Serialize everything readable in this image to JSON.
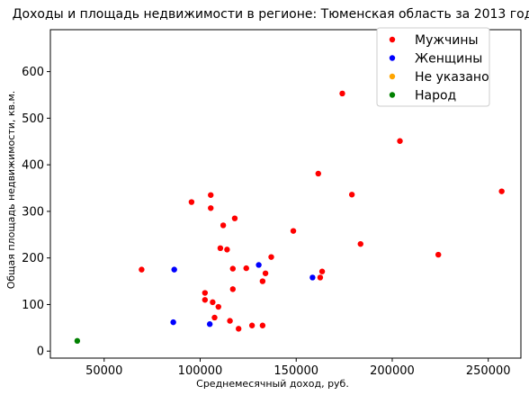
{
  "chart_data": {
    "type": "scatter",
    "title": "Доходы и площадь недвижимости в регионе: Тюменская область за 2013 год",
    "xlabel": "Среднемесячный доход, руб.",
    "ylabel": "Общая площадь недвижимости, кв.м.",
    "xlim": [
      22000,
      267000
    ],
    "ylim": [
      -15,
      690
    ],
    "xticks": [
      50000,
      100000,
      150000,
      200000,
      250000
    ],
    "yticks": [
      0,
      100,
      200,
      300,
      400,
      500,
      600
    ],
    "grid": false,
    "legend": "top-right",
    "series": [
      {
        "name": "Мужчины",
        "color": "#ff0000",
        "points": [
          [
            69500,
            175
          ],
          [
            95500,
            320
          ],
          [
            102500,
            125
          ],
          [
            102500,
            110
          ],
          [
            105500,
            335
          ],
          [
            105500,
            307
          ],
          [
            106500,
            105
          ],
          [
            107500,
            72
          ],
          [
            109500,
            95
          ],
          [
            110500,
            221
          ],
          [
            112000,
            270
          ],
          [
            114000,
            218
          ],
          [
            115500,
            65
          ],
          [
            117000,
            177
          ],
          [
            117000,
            133
          ],
          [
            118000,
            285
          ],
          [
            120000,
            48
          ],
          [
            124000,
            178
          ],
          [
            127000,
            55
          ],
          [
            132500,
            55
          ],
          [
            132500,
            150
          ],
          [
            134000,
            167
          ],
          [
            137000,
            202
          ],
          [
            148500,
            258
          ],
          [
            161500,
            381
          ],
          [
            162500,
            158
          ],
          [
            163500,
            171
          ],
          [
            174000,
            553
          ],
          [
            179000,
            336
          ],
          [
            183500,
            230
          ],
          [
            204000,
            451
          ],
          [
            224000,
            207
          ],
          [
            257000,
            343
          ]
        ]
      },
      {
        "name": "Женщины",
        "color": "#0000ff",
        "points": [
          [
            86000,
            62
          ],
          [
            86500,
            175
          ],
          [
            105000,
            58
          ],
          [
            130500,
            185
          ],
          [
            158500,
            158
          ],
          [
            196500,
            658
          ]
        ]
      },
      {
        "name": "Не указано",
        "color": "#ffa500",
        "points": []
      },
      {
        "name": "Народ",
        "color": "#008000",
        "points": [
          [
            36000,
            22
          ]
        ]
      }
    ]
  }
}
